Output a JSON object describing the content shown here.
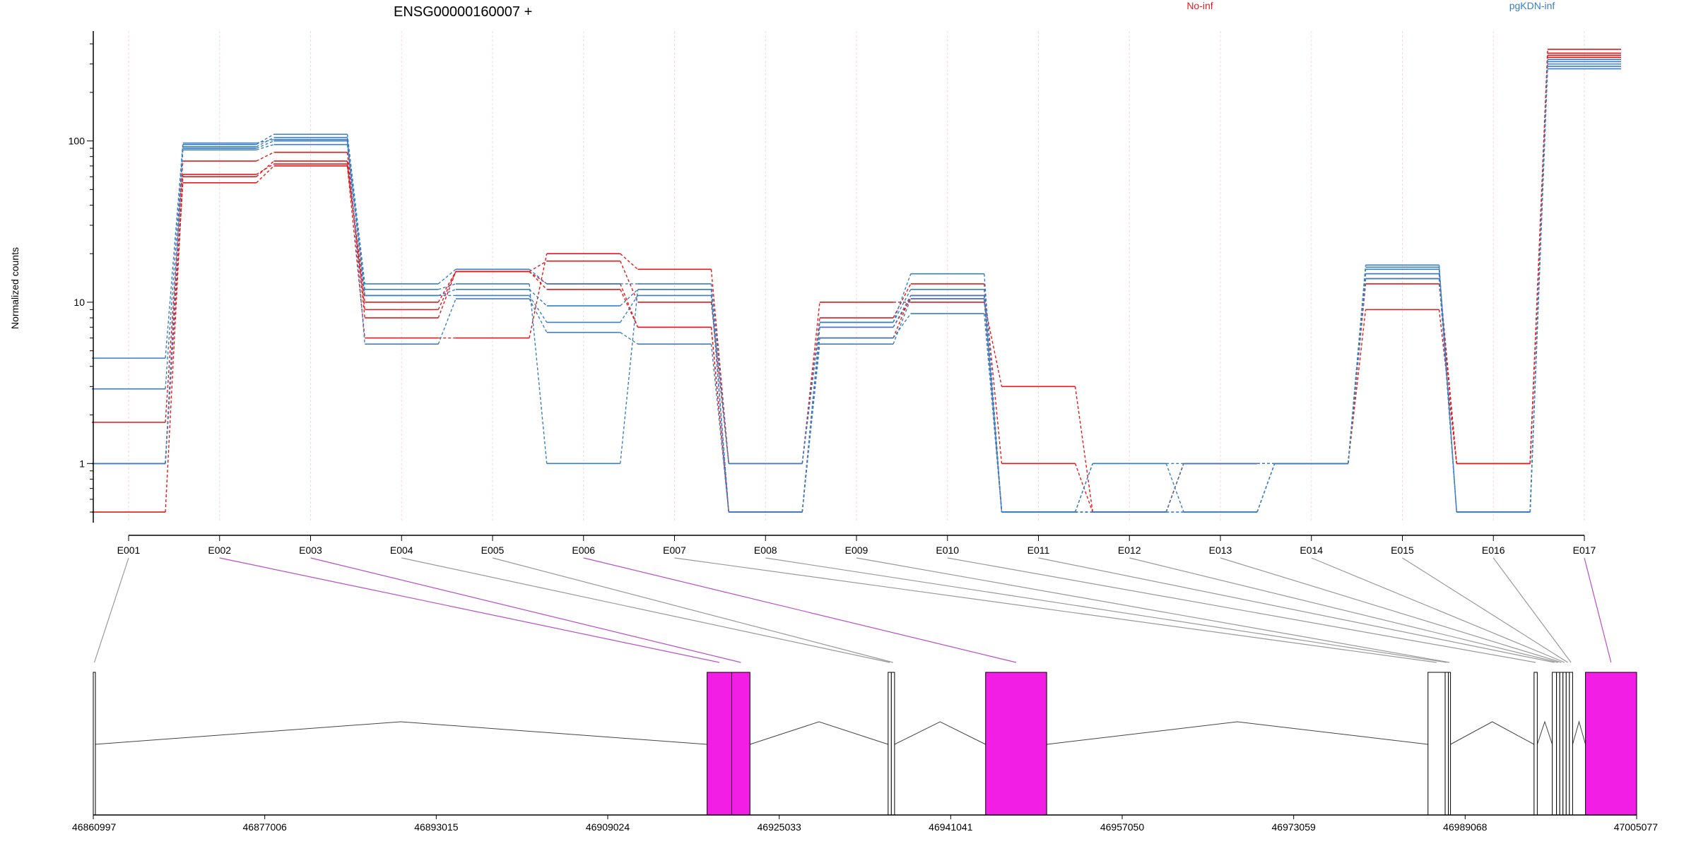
{
  "title": "ENSG00000160007 +",
  "ylabel": "Normalized counts",
  "colors": {
    "no_inf": "#e41a1c",
    "pgkdn_inf": "#3a7fc1",
    "highlight_exon": "#f21ee6",
    "highlight_link": "#b84fc6",
    "grid": "#f4d7d7"
  },
  "chart_data": {
    "type": "line",
    "title": "ENSG00000160007 +",
    "ylabel": "Normalized counts",
    "yscale": "log",
    "ylim": [
      0.43,
      480
    ],
    "yticks": [
      1,
      10,
      100
    ],
    "ytick_labels": [
      "1",
      "10",
      "100"
    ],
    "categories": [
      "E001",
      "E002",
      "E003",
      "E004",
      "E005",
      "E006",
      "E007",
      "E008",
      "E009",
      "E010",
      "E011",
      "E012",
      "E013",
      "E014",
      "E015",
      "E016",
      "E017"
    ],
    "legend": [
      {
        "name": "No-inf",
        "color": "#e41a1c"
      },
      {
        "name": "pgKDN-inf",
        "color": "#3a7fc1"
      }
    ],
    "legend_position": "top",
    "grid": "vertical",
    "series": [
      {
        "group": "No-inf",
        "values": [
          1.0,
          55,
          70,
          6.0,
          6.0,
          20,
          16,
          1.0,
          10,
          10,
          3.0,
          0.5,
          1.0,
          1.0,
          9.0,
          1.0,
          370
        ]
      },
      {
        "group": "No-inf",
        "values": [
          1.8,
          75,
          85,
          8.0,
          15.5,
          18,
          10,
          1.0,
          8.0,
          13,
          1.0,
          0.5,
          1.0,
          1.0,
          13,
          1.0,
          350
        ]
      },
      {
        "group": "No-inf",
        "values": [
          0.5,
          60,
          75,
          10,
          15.5,
          13,
          7.0,
          0.5,
          6.0,
          11,
          0.5,
          0.5,
          1.0,
          1.0,
          14,
          1.0,
          330
        ]
      },
      {
        "group": "No-inf",
        "values": [
          1.0,
          62,
          72,
          9.0,
          15.5,
          12,
          7.0,
          0.5,
          7.0,
          10.5,
          0.5,
          0.5,
          1.0,
          1.0,
          15,
          1.0,
          340
        ]
      },
      {
        "group": "pgKDN-inf",
        "values": [
          4.5,
          95,
          110,
          13,
          16,
          13,
          13,
          1.0,
          7.5,
          15,
          0.5,
          1.0,
          1.0,
          1.0,
          17,
          0.5,
          300
        ]
      },
      {
        "group": "pgKDN-inf",
        "values": [
          2.9,
          90,
          100,
          11,
          12,
          9.5,
          12,
          1.0,
          7.5,
          12,
          0.5,
          0.5,
          1.0,
          1.0,
          16,
          0.5,
          310
        ]
      },
      {
        "group": "pgKDN-inf",
        "values": [
          1.0,
          88,
          95,
          11,
          11,
          7.5,
          11,
          0.5,
          6.0,
          8.5,
          0.5,
          1.0,
          0.5,
          1.0,
          15,
          0.5,
          290
        ]
      },
      {
        "group": "pgKDN-inf",
        "values": [
          1.0,
          92,
          105,
          5.5,
          10.5,
          6.5,
          5.5,
          0.5,
          5.5,
          10.5,
          0.5,
          0.5,
          0.5,
          1.0,
          14,
          0.5,
          280
        ]
      },
      {
        "group": "pgKDN-inf",
        "values": [
          1.0,
          97,
          102,
          12,
          13,
          1.0,
          12,
          0.5,
          7.0,
          11,
          0.5,
          0.5,
          0.5,
          1.0,
          16.5,
          0.5,
          320
        ]
      }
    ],
    "genomic_axis": {
      "range": [
        46860997,
        47005077
      ],
      "ticks": [
        "46860997",
        "46877006",
        "46893015",
        "46909024",
        "46925033",
        "46941041",
        "46957050",
        "46973059",
        "46989068",
        "47005077"
      ],
      "tick_values": [
        46860997,
        46877006,
        46893015,
        46909024,
        46925033,
        46941041,
        46957050,
        46973059,
        46989068,
        47005077
      ]
    },
    "exons": [
      {
        "id": "E001",
        "start": 46860997,
        "end": 46861120,
        "highlight": false
      },
      {
        "id": "E002",
        "start": 46918300,
        "end": 46920600,
        "highlight": true
      },
      {
        "id": "E003",
        "start": 46920600,
        "end": 46922300,
        "highlight": true
      },
      {
        "id": "E004",
        "start": 46935200,
        "end": 46935500,
        "highlight": false
      },
      {
        "id": "E005",
        "start": 46935500,
        "end": 46935800,
        "highlight": false
      },
      {
        "id": "E006",
        "start": 46944300,
        "end": 46950000,
        "highlight": true
      },
      {
        "id": "E007",
        "start": 46985600,
        "end": 46987200,
        "highlight": false
      },
      {
        "id": "E008",
        "start": 46987200,
        "end": 46987500,
        "highlight": false
      },
      {
        "id": "E009",
        "start": 46987500,
        "end": 46987700,
        "highlight": false
      },
      {
        "id": "E010",
        "start": 46995500,
        "end": 46995800,
        "highlight": false
      },
      {
        "id": "E011",
        "start": 46997200,
        "end": 46997600,
        "highlight": false
      },
      {
        "id": "E012",
        "start": 46997600,
        "end": 46997900,
        "highlight": false
      },
      {
        "id": "E013",
        "start": 46997900,
        "end": 46998200,
        "highlight": false
      },
      {
        "id": "E014",
        "start": 46998200,
        "end": 46998500,
        "highlight": false
      },
      {
        "id": "E015",
        "start": 46998500,
        "end": 46998800,
        "highlight": false
      },
      {
        "id": "E016",
        "start": 46998800,
        "end": 46999100,
        "highlight": false
      },
      {
        "id": "E017",
        "start": 47000300,
        "end": 47005077,
        "highlight": true
      }
    ],
    "introns": [
      [
        46861120,
        46918300
      ],
      [
        46922300,
        46935200
      ],
      [
        46935800,
        46944300
      ],
      [
        46950000,
        46985600
      ],
      [
        46987700,
        46995500
      ],
      [
        46995800,
        46997200
      ],
      [
        46999100,
        47000300
      ]
    ]
  }
}
